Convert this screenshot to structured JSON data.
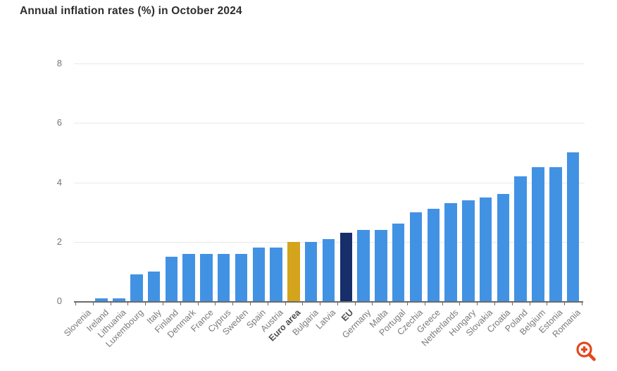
{
  "title": "Annual inflation rates (%) in October 2024",
  "colors": {
    "bar": "#4292e4",
    "euro_area": "#d4a41c",
    "eu": "#162f6a",
    "grid": "#e8e8e8",
    "axis": "#6b6b6b",
    "axis_label": "#757575",
    "title_text": "#2d2d2d",
    "zoom_icon": "#e2491f"
  },
  "chart_data": {
    "type": "bar",
    "title": "Annual inflation rates (%) in October 2024",
    "xlabel": "",
    "ylabel": "",
    "ylim": [
      0,
      8
    ],
    "yticks": [
      0,
      2,
      4,
      6,
      8
    ],
    "grid": true,
    "legend": "none",
    "categories": [
      "Slovenia",
      "Ireland",
      "Lithuania",
      "Luxembourg",
      "Italy",
      "Finland",
      "Denmark",
      "France",
      "Cyprus",
      "Sweden",
      "Spain",
      "Austria",
      "Euro area",
      "Bulgaria",
      "Latvia",
      "EU",
      "Germany",
      "Malta",
      "Portugal",
      "Czechia",
      "Greece",
      "Netherlands",
      "Hungary",
      "Slovakia",
      "Croatia",
      "Poland",
      "Belgium",
      "Estonia",
      "Romania"
    ],
    "values": [
      0.0,
      0.1,
      0.1,
      0.9,
      1.0,
      1.5,
      1.6,
      1.6,
      1.6,
      1.6,
      1.8,
      1.8,
      2.0,
      2.0,
      2.1,
      2.3,
      2.4,
      2.4,
      2.6,
      3.0,
      3.1,
      3.3,
      3.4,
      3.5,
      3.6,
      4.2,
      4.5,
      4.5,
      5.0
    ],
    "highlighted_categories": {
      "Euro area": "euro_area",
      "EU": "eu"
    },
    "bold_axis_categories": [
      "Euro area",
      "EU"
    ]
  },
  "controls": {
    "zoom_icon": "zoom-in-magnifier"
  }
}
